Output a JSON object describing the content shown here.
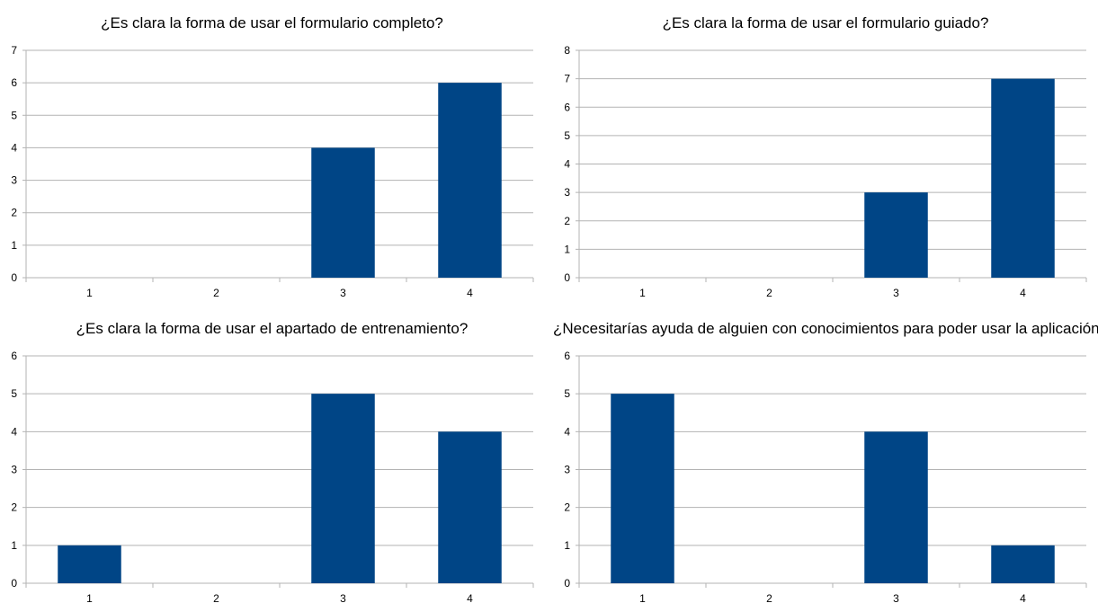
{
  "colors": {
    "bar": "#004586",
    "grid": "#b3b3b3",
    "axis": "#b3b3b3"
  },
  "chart_data": [
    {
      "type": "bar",
      "title": "¿Es clara la forma de usar el formulario completo?",
      "categories": [
        "1",
        "2",
        "3",
        "4"
      ],
      "values": [
        0,
        0,
        4,
        6
      ],
      "ylim": [
        0,
        7
      ],
      "yticks": [
        "0",
        "1",
        "2",
        "3",
        "4",
        "5",
        "6",
        "7"
      ],
      "grid": true
    },
    {
      "type": "bar",
      "title": "¿Es clara la forma de usar el formulario guiado?",
      "categories": [
        "1",
        "2",
        "3",
        "4"
      ],
      "values": [
        0,
        0,
        3,
        7
      ],
      "ylim": [
        0,
        8
      ],
      "yticks": [
        "0",
        "1",
        "2",
        "3",
        "4",
        "5",
        "6",
        "7",
        "8"
      ],
      "grid": true
    },
    {
      "type": "bar",
      "title": "¿Es clara la forma de usar el apartado de entrenamiento?",
      "categories": [
        "1",
        "2",
        "3",
        "4"
      ],
      "values": [
        1,
        0,
        5,
        4
      ],
      "ylim": [
        0,
        6
      ],
      "yticks": [
        "0",
        "1",
        "2",
        "3",
        "4",
        "5",
        "6"
      ],
      "grid": true
    },
    {
      "type": "bar",
      "title": "¿Necesitarías ayuda de alguien con conocimientos para poder usar la aplicación?",
      "categories": [
        "1",
        "2",
        "3",
        "4"
      ],
      "values": [
        5,
        0,
        4,
        1
      ],
      "ylim": [
        0,
        6
      ],
      "yticks": [
        "0",
        "1",
        "2",
        "3",
        "4",
        "5",
        "6"
      ],
      "grid": true
    }
  ]
}
